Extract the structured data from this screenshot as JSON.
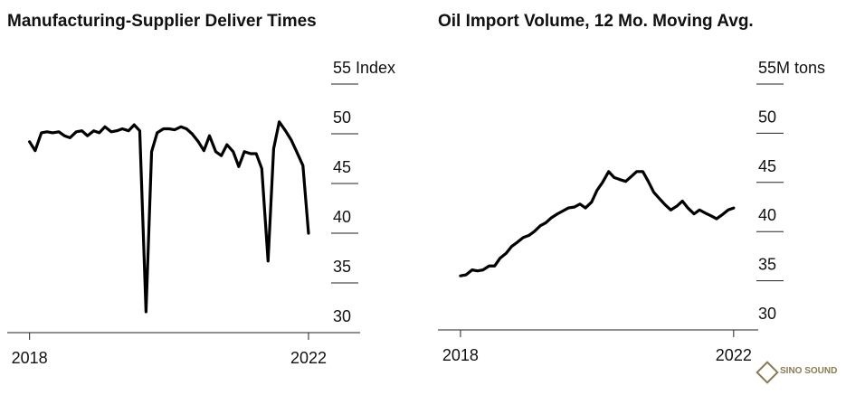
{
  "chart_data": [
    {
      "type": "line",
      "title": "Manufacturing-Supplier Deliver Times",
      "color": "#000000",
      "x": [
        2018,
        2018.08,
        2018.17,
        2018.25,
        2018.33,
        2018.42,
        2018.5,
        2018.58,
        2018.67,
        2018.75,
        2018.83,
        2018.92,
        2019,
        2019.08,
        2019.17,
        2019.25,
        2019.33,
        2019.42,
        2019.5,
        2019.58,
        2019.67,
        2019.75,
        2019.83,
        2019.92,
        2020,
        2020.08,
        2020.17,
        2020.25,
        2020.33,
        2020.42,
        2020.5,
        2020.58,
        2020.67,
        2020.75,
        2020.83,
        2020.92,
        2021,
        2021.08,
        2021.17,
        2021.25,
        2021.33,
        2021.42,
        2021.5,
        2021.58,
        2021.67,
        2021.75,
        2021.83,
        2021.92,
        2022
      ],
      "values": [
        49.2,
        48.3,
        50.1,
        50.2,
        50.1,
        50.2,
        49.8,
        49.6,
        50.2,
        50.3,
        49.8,
        50.3,
        50.1,
        50.7,
        50.2,
        50.3,
        50.5,
        50.3,
        50.9,
        50.3,
        32.1,
        48.2,
        50.1,
        50.5,
        50.5,
        50.4,
        50.7,
        50.5,
        50.0,
        49.2,
        48.3,
        49.8,
        48.2,
        47.8,
        48.9,
        48.2,
        46.7,
        48.2,
        48.0,
        48.0,
        46.5,
        37.2,
        48.5,
        51.2,
        50.3,
        49.4,
        48.2,
        46.8,
        40.0
      ],
      "xlim": [
        2017.68,
        2022.74
      ],
      "xticks": [
        2018,
        2022
      ],
      "ylim": [
        30,
        55
      ],
      "yticks": [
        {
          "value": 55,
          "label": "55 Index"
        },
        50,
        45,
        40,
        35,
        30
      ]
    },
    {
      "type": "line",
      "title": "Oil Import Volume, 12 Mo. Moving Avg.",
      "color": "#000000",
      "x": [
        2018,
        2018.08,
        2018.17,
        2018.25,
        2018.33,
        2018.42,
        2018.5,
        2018.58,
        2018.67,
        2018.75,
        2018.83,
        2018.92,
        2019,
        2019.08,
        2019.17,
        2019.25,
        2019.33,
        2019.42,
        2019.5,
        2019.58,
        2019.67,
        2019.75,
        2019.83,
        2019.92,
        2020,
        2020.08,
        2020.17,
        2020.25,
        2020.33,
        2020.42,
        2020.5,
        2020.58,
        2020.67,
        2020.75,
        2020.83,
        2020.92,
        2021,
        2021.08,
        2021.17,
        2021.25,
        2021.33,
        2021.42,
        2021.5,
        2021.58,
        2021.67,
        2021.75,
        2021.83,
        2021.92,
        2022
      ],
      "values": [
        35.5,
        35.6,
        36.1,
        36.0,
        36.1,
        36.5,
        36.5,
        37.3,
        37.8,
        38.5,
        38.9,
        39.4,
        39.6,
        40.0,
        40.6,
        40.9,
        41.4,
        41.8,
        42.1,
        42.4,
        42.5,
        42.8,
        42.4,
        43.0,
        44.2,
        45.0,
        46.1,
        45.5,
        45.3,
        45.1,
        45.6,
        46.1,
        46.1,
        45.1,
        44.0,
        43.3,
        42.7,
        42.2,
        42.6,
        43.1,
        42.4,
        41.8,
        42.2,
        41.9,
        41.6,
        41.3,
        41.7,
        42.2,
        42.4
      ],
      "xlim": [
        2017.67,
        2022.36
      ],
      "xticks": [
        2018,
        2022
      ],
      "ylim": [
        30,
        55
      ],
      "yticks": [
        {
          "value": 55,
          "label": "55M tons"
        },
        50,
        45,
        40,
        35,
        30
      ]
    }
  ],
  "watermark": "SINO SOUND"
}
